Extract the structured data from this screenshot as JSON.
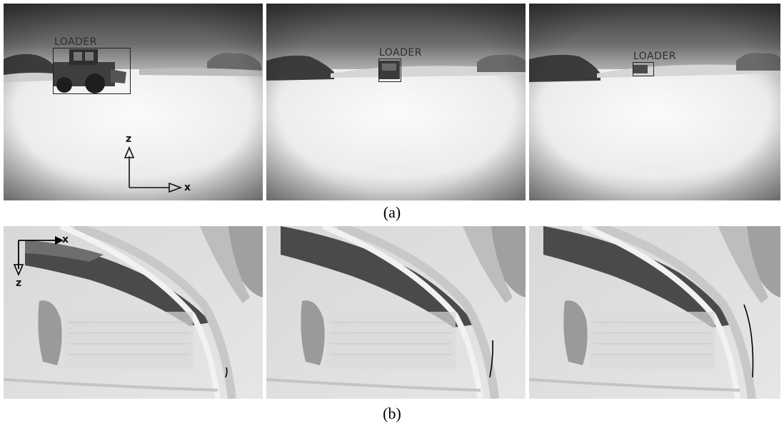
{
  "figure": {
    "caption_a": "(a)",
    "caption_b": "(b)"
  },
  "row_a": {
    "detection_label": "LOADER",
    "axis": {
      "horizontal": "x",
      "vertical": "z"
    }
  },
  "row_b": {
    "axis": {
      "horizontal": "x",
      "vertical": "z"
    }
  }
}
